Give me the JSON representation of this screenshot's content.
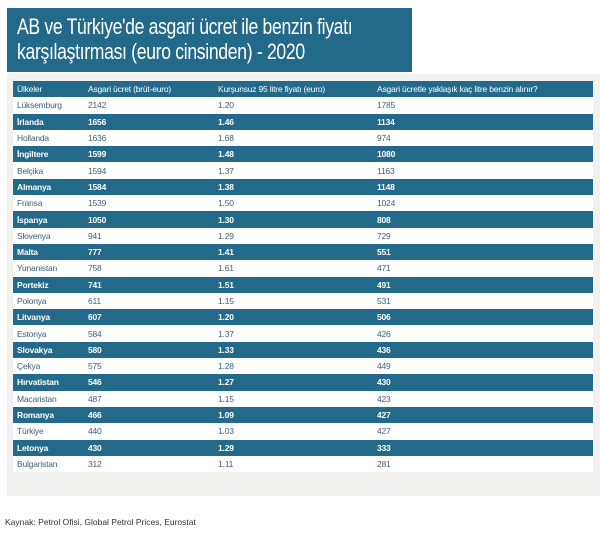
{
  "title_line1": "AB ve Türkiye'de asgari ücret ile benzin fiyatı",
  "title_line2": "karşılaştırması (euro cinsinden) - 2020",
  "table": {
    "headers": [
      "Ülkeler",
      "Asgari ücret (brüt-euro)",
      "Kurşunsuz 95 litre fiyatı (euro)",
      "Asgari ücretle yaklaşık kaç litre benzin alınır?"
    ],
    "rows": [
      [
        "Lüksemburg",
        "2142",
        "1.20",
        "1785"
      ],
      [
        "İrlanda",
        "1656",
        "1.46",
        "1134"
      ],
      [
        "Hollanda",
        "1636",
        "1.68",
        "974"
      ],
      [
        "İngiltere",
        "1599",
        "1.48",
        "1080"
      ],
      [
        "Belçika",
        "1594",
        "1.37",
        "1163"
      ],
      [
        "Almanya",
        "1584",
        "1.38",
        "1148"
      ],
      [
        "Fransa",
        "1539",
        "1.50",
        "1024"
      ],
      [
        "İspanya",
        "1050",
        "1.30",
        "808"
      ],
      [
        "Slovenya",
        "941",
        "1.29",
        "729"
      ],
      [
        "Malta",
        "777",
        "1.41",
        "551"
      ],
      [
        "Yunanistan",
        "758",
        "1.61",
        "471"
      ],
      [
        "Portekiz",
        "741",
        "1.51",
        "491"
      ],
      [
        "Polonya",
        "611",
        "1.15",
        "531"
      ],
      [
        "Litvanya",
        "607",
        "1.20",
        "506"
      ],
      [
        "Estonya",
        "584",
        "1.37",
        "426"
      ],
      [
        "Slovakya",
        "580",
        "1.33",
        "436"
      ],
      [
        "Çekya",
        "575",
        "1.28",
        "449"
      ],
      [
        "Hırvatistan",
        "546",
        "1.27",
        "430"
      ],
      [
        "Macaristan",
        "487",
        "1.15",
        "423"
      ],
      [
        "Romanya",
        "466",
        "1.09",
        "427"
      ],
      [
        "Türkiye",
        "440",
        "1.03",
        "427"
      ],
      [
        "Letonya",
        "430",
        "1.29",
        "333"
      ],
      [
        "Bulgaristan",
        "312",
        "1.11",
        "281"
      ]
    ]
  },
  "source": "Kaynak: Petrol Ofisi, Global Petrol Prices, Eurostat"
}
